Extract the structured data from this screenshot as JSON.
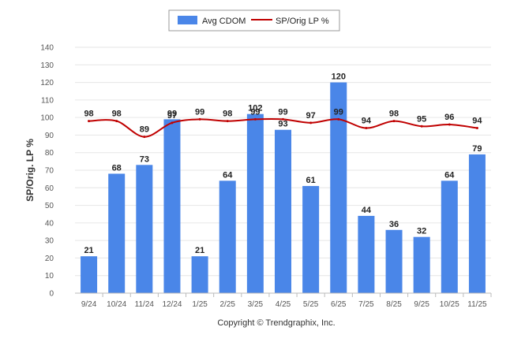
{
  "chart_data": {
    "type": "bar",
    "categories": [
      "9/24",
      "10/24",
      "11/24",
      "12/24",
      "1/25",
      "2/25",
      "3/25",
      "4/25",
      "5/25",
      "6/25",
      "7/25",
      "8/25",
      "9/25",
      "10/25",
      "11/25"
    ],
    "series": [
      {
        "name": "Avg CDOM",
        "type": "bar",
        "color": "#4a86e8",
        "values": [
          21,
          68,
          73,
          99,
          21,
          64,
          102,
          93,
          61,
          120,
          44,
          36,
          32,
          64,
          79
        ]
      },
      {
        "name": "SP/Orig LP %",
        "type": "line",
        "color": "#c00000",
        "values": [
          98,
          98,
          89,
          97,
          99,
          98,
          99,
          99,
          97,
          99,
          94,
          98,
          95,
          96,
          94
        ]
      }
    ],
    "title": "",
    "xlabel": "",
    "ylabel": "SP/Orig. LP %",
    "ylim": [
      0,
      140
    ],
    "yticks": [
      0,
      10,
      20,
      30,
      40,
      50,
      60,
      70,
      80,
      90,
      100,
      110,
      120,
      130,
      140
    ],
    "grid": true,
    "legend": "top-center"
  },
  "footer": "Copyright © Trendgraphix, Inc."
}
